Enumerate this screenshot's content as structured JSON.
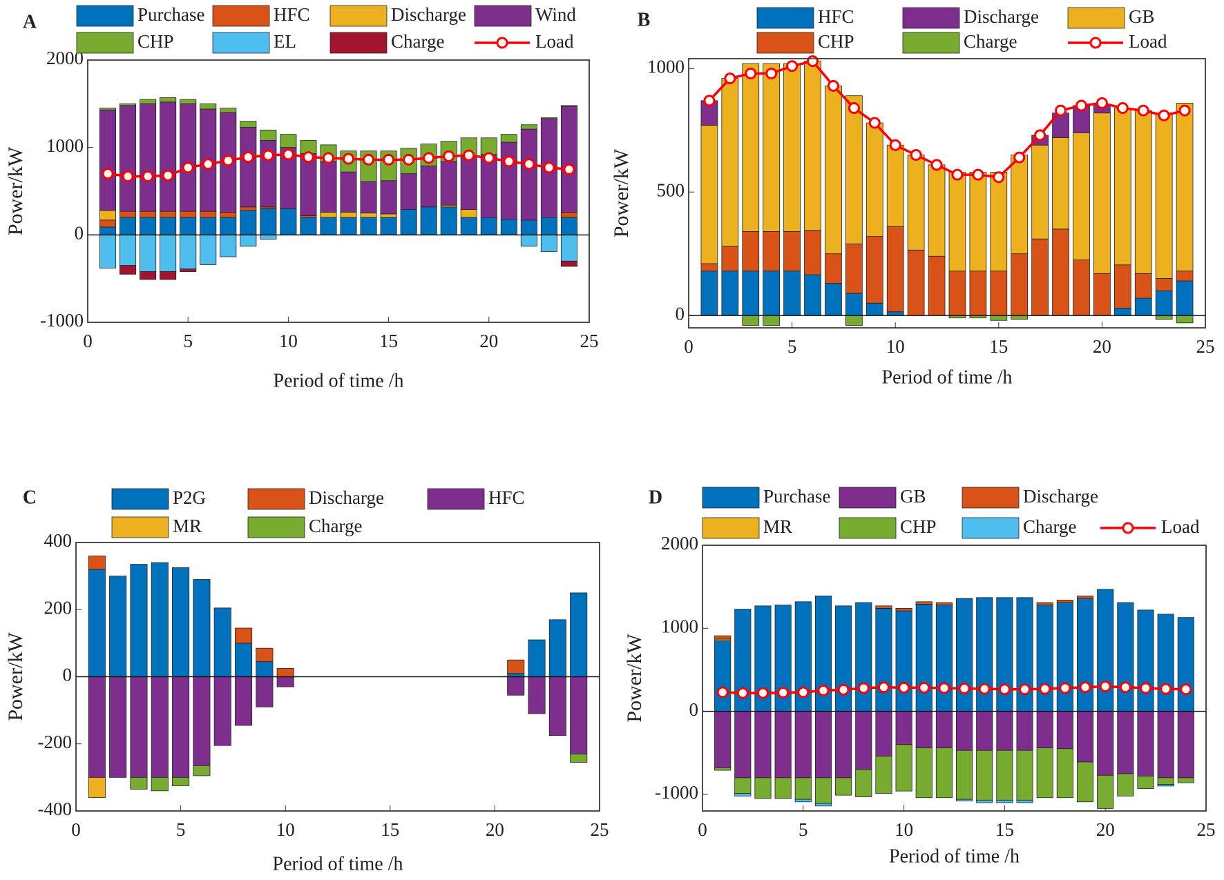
{
  "chart_data": [
    {
      "type": "bar",
      "label": "A",
      "ylabel": "Power/kW",
      "xlabel": "Period of time /h",
      "xlim": [
        0,
        25
      ],
      "xticks": [
        0,
        5,
        10,
        15,
        20,
        25
      ],
      "ylim": [
        -1000,
        2000
      ],
      "yticks": [
        -1000,
        0,
        1000,
        2000
      ],
      "x": [
        1,
        2,
        3,
        4,
        5,
        6,
        7,
        8,
        9,
        10,
        11,
        12,
        13,
        14,
        15,
        16,
        17,
        18,
        19,
        20,
        21,
        22,
        23,
        24
      ],
      "series": [
        {
          "name": "Purchase",
          "color": "#0072BD",
          "values": [
            90,
            200,
            200,
            200,
            200,
            200,
            200,
            280,
            300,
            300,
            200,
            200,
            200,
            200,
            200,
            290,
            320,
            320,
            200,
            200,
            180,
            170,
            200,
            200
          ]
        },
        {
          "name": "HFC",
          "color": "#D95319",
          "values": [
            80,
            70,
            70,
            70,
            70,
            70,
            60,
            40,
            20,
            0,
            20,
            0,
            0,
            0,
            0,
            0,
            0,
            0,
            0,
            0,
            0,
            0,
            0,
            60
          ]
        },
        {
          "name": "Discharge",
          "color": "#EDB120",
          "values": [
            110,
            0,
            0,
            0,
            0,
            0,
            0,
            0,
            0,
            0,
            0,
            60,
            60,
            50,
            40,
            0,
            0,
            20,
            90,
            0,
            0,
            0,
            0,
            0
          ]
        },
        {
          "name": "Wind",
          "color": "#7E2F8E",
          "values": [
            1150,
            1210,
            1230,
            1250,
            1230,
            1170,
            1140,
            910,
            760,
            700,
            710,
            580,
            460,
            360,
            380,
            410,
            470,
            500,
            610,
            720,
            880,
            1040,
            1130,
            1210
          ]
        },
        {
          "name": "CHP",
          "color": "#77AC30",
          "values": [
            20,
            20,
            50,
            50,
            50,
            60,
            50,
            70,
            120,
            150,
            150,
            190,
            240,
            350,
            340,
            290,
            250,
            230,
            210,
            190,
            90,
            50,
            10,
            10
          ]
        },
        {
          "name": "EL",
          "color": "#4DBEEE",
          "values": [
            -380,
            -350,
            -420,
            -420,
            -390,
            -340,
            -250,
            -130,
            -50,
            0,
            0,
            0,
            0,
            0,
            0,
            0,
            0,
            0,
            0,
            0,
            0,
            -130,
            -190,
            -300
          ]
        },
        {
          "name": "Charge",
          "color": "#A2142F",
          "values": [
            0,
            -100,
            -90,
            -90,
            -30,
            0,
            0,
            0,
            0,
            0,
            0,
            0,
            0,
            0,
            0,
            0,
            0,
            0,
            0,
            0,
            0,
            0,
            0,
            -60
          ]
        },
        {
          "name": "Load",
          "type": "line",
          "color": "#FF0000",
          "values": [
            700,
            670,
            670,
            680,
            770,
            810,
            850,
            890,
            910,
            920,
            890,
            880,
            870,
            860,
            860,
            860,
            880,
            900,
            910,
            880,
            840,
            810,
            770,
            750
          ]
        }
      ]
    },
    {
      "type": "bar",
      "label": "B",
      "ylabel": "Power/kW",
      "xlabel": "Period of time /h",
      "xlim": [
        0,
        25
      ],
      "xticks": [
        0,
        5,
        10,
        15,
        20,
        25
      ],
      "ylim": [
        -50,
        1040
      ],
      "yticks": [
        0,
        500,
        1000
      ],
      "x": [
        1,
        2,
        3,
        4,
        5,
        6,
        7,
        8,
        9,
        10,
        11,
        12,
        13,
        14,
        15,
        16,
        17,
        18,
        19,
        20,
        21,
        22,
        23,
        24
      ],
      "series": [
        {
          "name": "HFC",
          "color": "#0072BD",
          "values": [
            180,
            180,
            180,
            180,
            180,
            165,
            130,
            90,
            50,
            15,
            0,
            0,
            0,
            0,
            0,
            0,
            0,
            0,
            0,
            0,
            30,
            70,
            100,
            140
          ]
        },
        {
          "name": "CHP",
          "color": "#D95319",
          "values": [
            30,
            100,
            160,
            160,
            160,
            180,
            120,
            200,
            270,
            345,
            265,
            240,
            180,
            180,
            180,
            250,
            310,
            350,
            225,
            170,
            175,
            100,
            50,
            40
          ]
        },
        {
          "name": "GB",
          "color": "#EDB120",
          "values": [
            560,
            680,
            680,
            680,
            680,
            685,
            680,
            600,
            460,
            330,
            385,
            370,
            400,
            400,
            400,
            400,
            380,
            370,
            515,
            650,
            635,
            660,
            670,
            680
          ]
        },
        {
          "name": "Discharge",
          "color": "#7E2F8E",
          "values": [
            100,
            0,
            0,
            0,
            0,
            0,
            0,
            0,
            0,
            0,
            0,
            0,
            0,
            0,
            0,
            0,
            40,
            100,
            110,
            30,
            0,
            0,
            0,
            0
          ]
        },
        {
          "name": "Charge",
          "color": "#77AC30",
          "values": [
            0,
            0,
            -40,
            -40,
            0,
            0,
            0,
            -40,
            0,
            0,
            0,
            0,
            -10,
            -10,
            -20,
            -15,
            0,
            0,
            0,
            0,
            0,
            0,
            -15,
            -30
          ]
        },
        {
          "name": "Load",
          "type": "line",
          "color": "#FF0000",
          "values": [
            870,
            960,
            980,
            980,
            1010,
            1030,
            930,
            840,
            780,
            690,
            650,
            610,
            570,
            570,
            560,
            640,
            730,
            830,
            850,
            860,
            840,
            830,
            810,
            830
          ]
        }
      ]
    },
    {
      "type": "bar",
      "label": "C",
      "ylabel": "Power/kW",
      "xlabel": "Period of time /h",
      "xlim": [
        0,
        25
      ],
      "xticks": [
        0,
        5,
        10,
        15,
        20,
        25
      ],
      "ylim": [
        -400,
        400
      ],
      "yticks": [
        -400,
        -200,
        0,
        200,
        400
      ],
      "x": [
        1,
        2,
        3,
        4,
        5,
        6,
        7,
        8,
        9,
        10,
        11,
        12,
        13,
        14,
        15,
        16,
        17,
        18,
        19,
        20,
        21,
        22,
        23,
        24
      ],
      "series": [
        {
          "name": "P2G",
          "color": "#0072BD",
          "values": [
            320,
            300,
            335,
            340,
            325,
            290,
            205,
            100,
            45,
            0,
            0,
            0,
            0,
            0,
            0,
            0,
            0,
            0,
            0,
            0,
            10,
            110,
            170,
            250
          ]
        },
        {
          "name": "Discharge",
          "color": "#D95319",
          "values": [
            40,
            0,
            0,
            0,
            0,
            0,
            0,
            45,
            40,
            25,
            0,
            0,
            0,
            0,
            0,
            0,
            0,
            0,
            0,
            0,
            40,
            0,
            0,
            0
          ]
        },
        {
          "name": "HFC",
          "color": "#7E2F8E",
          "values": [
            -300,
            -300,
            -300,
            -300,
            -300,
            -265,
            -205,
            -145,
            -90,
            -30,
            0,
            0,
            0,
            0,
            0,
            0,
            0,
            0,
            0,
            0,
            -55,
            -110,
            -175,
            -230
          ]
        },
        {
          "name": "MR",
          "color": "#EDB120",
          "values": [
            -60,
            0,
            0,
            0,
            0,
            0,
            0,
            0,
            0,
            0,
            0,
            0,
            0,
            0,
            0,
            0,
            0,
            0,
            0,
            0,
            0,
            0,
            0,
            0
          ]
        },
        {
          "name": "Charge",
          "color": "#77AC30",
          "values": [
            0,
            0,
            -35,
            -40,
            -25,
            -30,
            0,
            0,
            0,
            0,
            0,
            0,
            0,
            0,
            0,
            0,
            0,
            0,
            0,
            0,
            0,
            0,
            0,
            -25
          ]
        }
      ]
    },
    {
      "type": "bar",
      "label": "D",
      "ylabel": "Power/kW",
      "xlabel": "Period of time /h",
      "xlim": [
        0,
        25
      ],
      "xticks": [
        0,
        5,
        10,
        15,
        20,
        25
      ],
      "ylim": [
        -1200,
        2000
      ],
      "yticks": [
        -1000,
        0,
        1000,
        2000
      ],
      "x": [
        1,
        2,
        3,
        4,
        5,
        6,
        7,
        8,
        9,
        10,
        11,
        12,
        13,
        14,
        15,
        16,
        17,
        18,
        19,
        20,
        21,
        22,
        23,
        24
      ],
      "series": [
        {
          "name": "Purchase",
          "color": "#0072BD",
          "values": [
            850,
            1230,
            1270,
            1280,
            1320,
            1390,
            1270,
            1310,
            1240,
            1210,
            1290,
            1280,
            1360,
            1370,
            1370,
            1370,
            1280,
            1310,
            1360,
            1470,
            1310,
            1220,
            1170,
            1130
          ]
        },
        {
          "name": "MR",
          "color": "#EDB120",
          "values": [
            20,
            0,
            0,
            0,
            0,
            0,
            0,
            0,
            0,
            0,
            0,
            0,
            0,
            0,
            0,
            0,
            0,
            0,
            0,
            0,
            0,
            0,
            0,
            0
          ]
        },
        {
          "name": "Discharge",
          "color": "#D95319",
          "values": [
            40,
            0,
            0,
            0,
            0,
            0,
            0,
            0,
            30,
            30,
            30,
            30,
            0,
            0,
            0,
            0,
            30,
            30,
            30,
            0,
            0,
            0,
            0,
            0
          ]
        },
        {
          "name": "GB",
          "color": "#7E2F8E",
          "values": [
            -680,
            -800,
            -800,
            -800,
            -800,
            -800,
            -800,
            -700,
            -540,
            -400,
            -440,
            -440,
            -470,
            -470,
            -470,
            -470,
            -440,
            -450,
            -610,
            -770,
            -750,
            -780,
            -800,
            -800
          ]
        },
        {
          "name": "CHP",
          "color": "#77AC30",
          "values": [
            -30,
            -190,
            -250,
            -250,
            -260,
            -310,
            -210,
            -330,
            -450,
            -560,
            -600,
            -600,
            -590,
            -600,
            -600,
            -600,
            -600,
            -590,
            -480,
            -400,
            -270,
            -150,
            -80,
            -60
          ]
        },
        {
          "name": "Charge",
          "color": "#4DBEEE",
          "values": [
            0,
            -30,
            0,
            0,
            -30,
            -30,
            0,
            0,
            0,
            0,
            0,
            0,
            -20,
            -30,
            -30,
            -30,
            0,
            0,
            0,
            0,
            0,
            0,
            -20,
            0
          ]
        },
        {
          "name": "Load",
          "type": "line",
          "color": "#FF0000",
          "values": [
            230,
            220,
            220,
            225,
            230,
            250,
            260,
            280,
            290,
            285,
            285,
            280,
            275,
            270,
            265,
            265,
            270,
            280,
            290,
            300,
            290,
            280,
            270,
            265
          ]
        }
      ]
    }
  ]
}
